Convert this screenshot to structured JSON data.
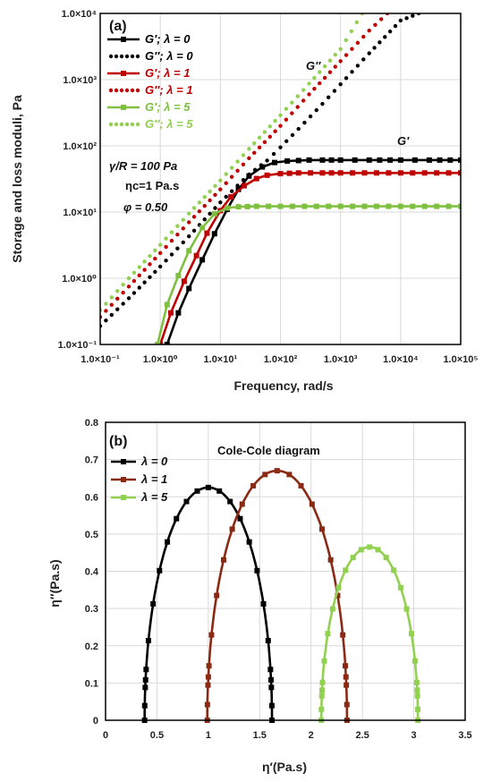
{
  "chart_data": [
    {
      "type": "line",
      "panel_label": "(a)",
      "xlabel": "Frequency, rad/s",
      "ylabel": "Storage and loss moduli, Pa",
      "xscale": "log",
      "yscale": "log",
      "xlim": [
        0.1,
        100000
      ],
      "ylim": [
        0.1,
        10000
      ],
      "grid": true,
      "x_tick_labels": [
        "1.0×10⁻¹",
        "1.0×10⁰",
        "1.0×10¹",
        "1.0×10²",
        "1.0×10³",
        "1.0×10⁴",
        "1.0×10⁵"
      ],
      "y_tick_labels": [
        "1.0×10⁻¹",
        "1.0×10⁰",
        "1.0×10¹",
        "1.0×10²",
        "1.0×10³",
        "1.0×10⁴"
      ],
      "legend_position": "top-left",
      "series": [
        {
          "name": "G′; λ = 0",
          "color": "#000000",
          "style": "solid-square",
          "x": [
            1.3,
            2,
            3,
            5,
            8,
            13,
            20,
            30,
            50,
            80,
            130,
            200,
            300,
            500,
            1000,
            3000,
            10000,
            30000,
            100000
          ],
          "y": [
            0.1,
            0.3,
            0.7,
            1.9,
            4.7,
            11,
            22,
            35,
            48,
            56,
            59,
            60,
            61,
            61,
            61,
            61,
            61,
            61,
            61
          ]
        },
        {
          "name": "G″; λ = 0",
          "color": "#000000",
          "style": "dotted",
          "x": [
            0.1,
            0.3,
            1,
            3,
            10,
            30,
            60,
            100,
            200,
            500,
            1000,
            3000,
            10000,
            20000
          ],
          "y": [
            0.19,
            0.5,
            1.5,
            4.3,
            14,
            37,
            60,
            95,
            180,
            430,
            850,
            2500,
            7800,
            10000
          ]
        },
        {
          "name": "G′; λ = 1",
          "color": "#c00000",
          "style": "solid-square",
          "x": [
            1,
            1.5,
            2.5,
            4,
            6,
            10,
            15,
            25,
            40,
            60,
            100,
            200,
            500,
            1000,
            10000,
            100000
          ],
          "y": [
            0.1,
            0.3,
            0.9,
            2.2,
            4.8,
            10.5,
            17,
            25,
            32,
            36,
            38,
            39,
            39,
            39,
            39,
            39
          ]
        },
        {
          "name": "G″; λ = 1",
          "color": "#c00000",
          "style": "dotted",
          "x": [
            0.1,
            0.3,
            1,
            3,
            10,
            30,
            100,
            300,
            1000,
            3000,
            6000
          ],
          "y": [
            0.26,
            0.75,
            2.4,
            7,
            22,
            65,
            200,
            600,
            1900,
            5500,
            10000
          ]
        },
        {
          "name": "G′; λ = 5",
          "color": "#80c040",
          "style": "solid-square",
          "x": [
            0.9,
            1.3,
            2,
            3,
            5,
            8,
            13,
            20,
            40,
            100,
            1000,
            10000,
            100000
          ],
          "y": [
            0.1,
            0.4,
            1.1,
            2.6,
            5.8,
            9.4,
            11.5,
            12,
            12.2,
            12.2,
            12.2,
            12.2,
            12.2
          ]
        },
        {
          "name": "G″; λ = 5",
          "color": "#92d050",
          "style": "dotted",
          "x": [
            0.1,
            0.3,
            1,
            3,
            10,
            30,
            100,
            300,
            1000,
            2300
          ],
          "y": [
            0.33,
            1.0,
            3.2,
            9.5,
            30,
            90,
            290,
            870,
            2900,
            10000
          ]
        }
      ],
      "annotations": {
        "g_double_prime_label": "G″",
        "g_prime_label": "G′",
        "param_yield": "γ/R = 100 Pa",
        "param_viscosity": "ηc=1 Pa.s",
        "param_fraction": "φ = 0.50"
      }
    },
    {
      "type": "line",
      "panel_label": "(b)",
      "title": "Cole-Cole diagram",
      "xlabel": "η′(Pa.s)",
      "ylabel": "η″(Pa.s)",
      "xlim": [
        0,
        3.5
      ],
      "ylim": [
        0,
        0.8
      ],
      "x_ticks": [
        0,
        0.5,
        1,
        1.5,
        2,
        2.5,
        3,
        3.5
      ],
      "y_ticks": [
        0,
        0.1,
        0.2,
        0.3,
        0.4,
        0.5,
        0.6,
        0.7,
        0.8
      ],
      "x_tick_labels": [
        "0",
        "0.5",
        "1",
        "1.5",
        "2",
        "2.5",
        "3",
        "3.5"
      ],
      "y_tick_labels": [
        "0",
        "0.1",
        "0.2",
        "0.3",
        "0.4",
        "0.5",
        "0.6",
        "0.7",
        "0.8"
      ],
      "grid": true,
      "legend_position": "top-left",
      "series": [
        {
          "name": "λ = 0",
          "color": "#000000",
          "center": 1.0,
          "half_width": 0.62,
          "peak": 0.625
        },
        {
          "name": "λ = 1",
          "color": "#8b2a14",
          "center": 1.67,
          "half_width": 0.68,
          "peak": 0.67
        },
        {
          "name": "λ = 5",
          "color": "#92d050",
          "center": 2.57,
          "half_width": 0.47,
          "peak": 0.465
        }
      ]
    }
  ]
}
